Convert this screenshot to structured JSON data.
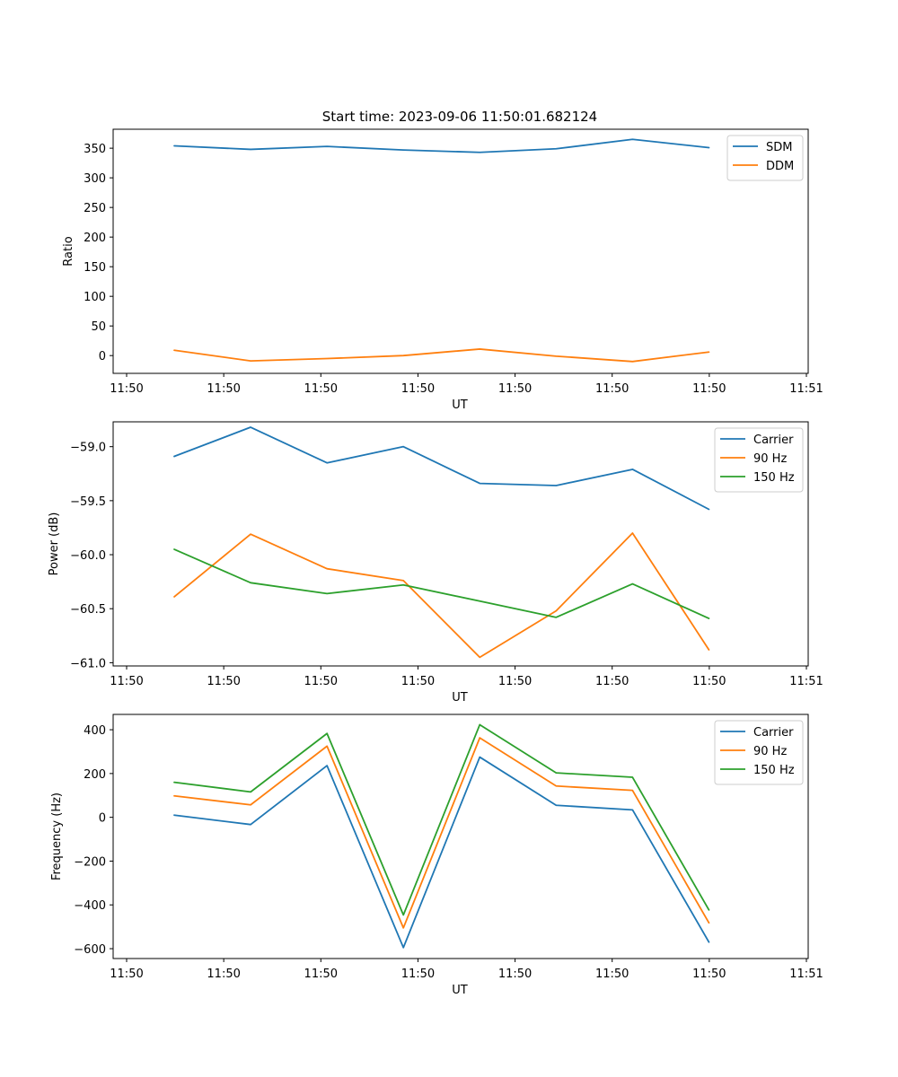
{
  "figure": {
    "title": "Start time: 2023-09-06 11:50:01.682124"
  },
  "chart_data": [
    {
      "type": "line",
      "title": "Start time: 2023-09-06 11:50:01.682124",
      "xlabel": "UT",
      "ylabel": "Ratio",
      "x_tick_labels": [
        "11:50",
        "11:50",
        "11:50",
        "11:50",
        "11:50",
        "11:50",
        "11:50",
        "11:51"
      ],
      "x_points": [
        1,
        2,
        3,
        4,
        5,
        6,
        7,
        8
      ],
      "xlim": [
        0.2,
        9.3
      ],
      "ylim": [
        -30,
        382
      ],
      "y_ticks": [
        0,
        50,
        100,
        150,
        200,
        250,
        300,
        350
      ],
      "legend_position": "top-right",
      "series": [
        {
          "name": "SDM",
          "color": "#1f77b4",
          "values": [
            354,
            348,
            353,
            347,
            343,
            349,
            365,
            351
          ]
        },
        {
          "name": "DDM",
          "color": "#ff7f0e",
          "values": [
            9,
            -9,
            -5,
            0,
            11,
            -1,
            -10,
            6
          ]
        }
      ]
    },
    {
      "type": "line",
      "title": "",
      "xlabel": "UT",
      "ylabel": "Power (dB)",
      "x_tick_labels": [
        "11:50",
        "11:50",
        "11:50",
        "11:50",
        "11:50",
        "11:50",
        "11:50",
        "11:51"
      ],
      "x_points": [
        1,
        2,
        3,
        4,
        5,
        6,
        7,
        8
      ],
      "xlim": [
        0.2,
        9.3
      ],
      "ylim": [
        -61.03,
        -58.77
      ],
      "y_ticks": [
        -61.0,
        -60.5,
        -60.0,
        -59.5,
        -59.0
      ],
      "legend_position": "top-right",
      "series": [
        {
          "name": "Carrier",
          "color": "#1f77b4",
          "values": [
            -59.09,
            -58.82,
            -59.15,
            -59.0,
            -59.34,
            -59.36,
            -59.21,
            -59.58
          ]
        },
        {
          "name": "90 Hz",
          "color": "#ff7f0e",
          "values": [
            -60.39,
            -59.81,
            -60.13,
            -60.24,
            -60.95,
            -60.52,
            -59.8,
            -60.88
          ]
        },
        {
          "name": "150 Hz",
          "color": "#2ca02c",
          "values": [
            -59.95,
            -60.26,
            -60.36,
            -60.28,
            -60.43,
            -60.58,
            -60.27,
            -60.59
          ]
        }
      ]
    },
    {
      "type": "line",
      "title": "",
      "xlabel": "UT",
      "ylabel": "Frequency (Hz)",
      "x_tick_labels": [
        "11:50",
        "11:50",
        "11:50",
        "11:50",
        "11:50",
        "11:50",
        "11:50",
        "11:51"
      ],
      "x_points": [
        1,
        2,
        3,
        4,
        5,
        6,
        7,
        8
      ],
      "xlim": [
        0.2,
        9.3
      ],
      "ylim": [
        -645,
        470
      ],
      "y_ticks": [
        -600,
        -400,
        -200,
        0,
        200,
        400
      ],
      "legend_position": "top-right",
      "series": [
        {
          "name": "Carrier",
          "color": "#1f77b4",
          "values": [
            10,
            -33,
            236,
            -595,
            275,
            55,
            34,
            -570
          ]
        },
        {
          "name": "90 Hz",
          "color": "#ff7f0e",
          "values": [
            98,
            57,
            325,
            -505,
            363,
            143,
            123,
            -482
          ]
        },
        {
          "name": "150 Hz",
          "color": "#2ca02c",
          "values": [
            160,
            116,
            383,
            -446,
            423,
            203,
            183,
            -423
          ]
        }
      ]
    }
  ]
}
